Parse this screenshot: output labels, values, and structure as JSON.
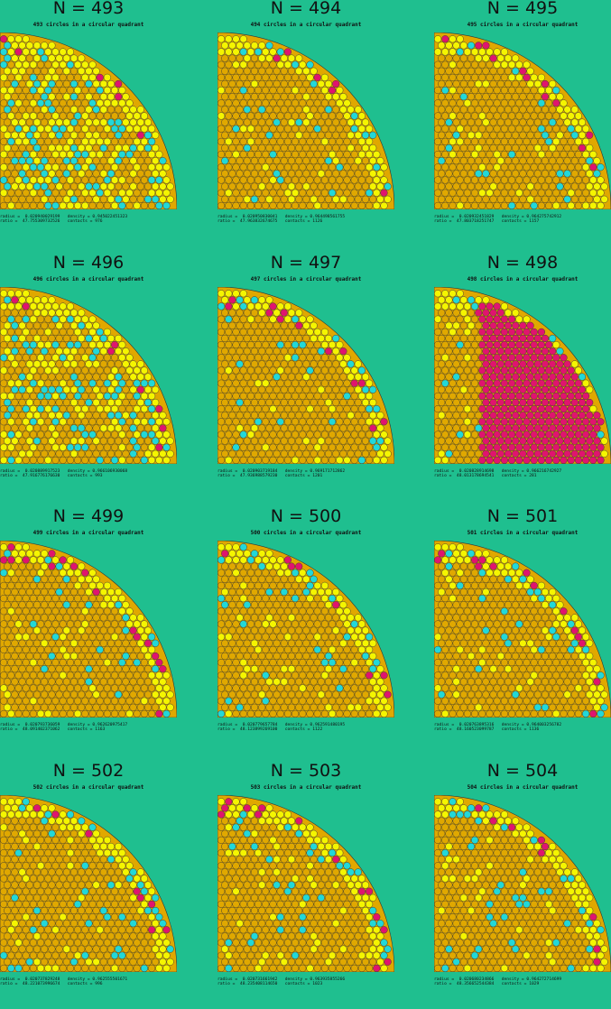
{
  "colors": {
    "background": "#1fbf8f",
    "gold": "#e0a800",
    "yellow": "#f5f500",
    "cyan": "#22d8d8",
    "magenta": "#e0146e",
    "outline": "#333333"
  },
  "labels": {
    "radius": "radius =",
    "density": "density =",
    "ratio": "ratio =",
    "contacts": "contacts ="
  },
  "panels": [
    {
      "n_label": "N = 493",
      "subtitle": "493 circles in a circular quadrant",
      "radius": "0.020940029199",
      "density": "0.945022451323",
      "ratio": "47.755309732526",
      "contacts": "976",
      "seed": 493,
      "pattern": "mixed"
    },
    {
      "n_label": "N = 494",
      "subtitle": "494 circles in a circular quadrant",
      "radius": "0.020950830041",
      "density": "0.964498561755",
      "ratio": "47.963832674675",
      "contacts": "1126",
      "seed": 494,
      "pattern": "edge"
    },
    {
      "n_label": "N = 495",
      "subtitle": "495 circles in a circular quadrant",
      "radius": "0.020932451829",
      "density": "0.964275742912",
      "ratio": "47.803718251747",
      "contacts": "1157",
      "seed": 495,
      "pattern": "edge"
    },
    {
      "n_label": "N = 496",
      "subtitle": "496 circles in a circular quadrant",
      "radius": "0.020889917523",
      "density": "0.966106930068",
      "ratio": "47.916776176630",
      "contacts": "993",
      "seed": 496,
      "pattern": "mixed"
    },
    {
      "n_label": "N = 497",
      "subtitle": "497 circles in a circular quadrant",
      "radius": "0.020903719184",
      "density": "0.969171712862",
      "ratio": "47.936988579230",
      "contacts": "1201",
      "seed": 497,
      "pattern": "edge"
    },
    {
      "n_label": "N = 498",
      "subtitle": "498 circles in a circular quadrant",
      "radius": "0.020828914698",
      "density": "0.966216742927",
      "ratio": "48.013178694541",
      "contacts": "281",
      "seed": 498,
      "pattern": "magenta"
    },
    {
      "n_label": "N = 499",
      "subtitle": "499 circles in a circular quadrant",
      "radius": "0.020793736059",
      "density": "0.962620975417",
      "ratio": "48.091402371062",
      "contacts": "1163",
      "seed": 499,
      "pattern": "edge"
    },
    {
      "n_label": "N = 500",
      "subtitle": "500 circles in a circular quadrant",
      "radius": "0.020779657784",
      "density": "0.962591480195",
      "ratio": "48.123899269100",
      "contacts": "1122",
      "seed": 500,
      "pattern": "edge"
    },
    {
      "n_label": "N = 501",
      "subtitle": "501 circles in a circular quadrant",
      "radius": "0.020763895316",
      "density": "0.964003256782",
      "ratio": "48.160523099787",
      "contacts": "1136",
      "seed": 501,
      "pattern": "edge"
    },
    {
      "n_label": "N = 502",
      "subtitle": "502 circles in a circular quadrant",
      "radius": "0.020737829248",
      "density": "0.962555501671",
      "ratio": "48.221073996674",
      "contacts": "996",
      "seed": 502,
      "pattern": "edge"
    },
    {
      "n_label": "N = 503",
      "subtitle": "503 circles in a circular quadrant",
      "radius": "0.020731661942",
      "density": "0.963935855266",
      "ratio": "48.235408114650",
      "contacts": "1023",
      "seed": 503,
      "pattern": "edge"
    },
    {
      "n_label": "N = 504",
      "subtitle": "504 circles in a circular quadrant",
      "radius": "0.020680234866",
      "density": "0.964272714699",
      "ratio": "48.356652544384",
      "contacts": "1029",
      "seed": 504,
      "pattern": "edge"
    }
  ]
}
